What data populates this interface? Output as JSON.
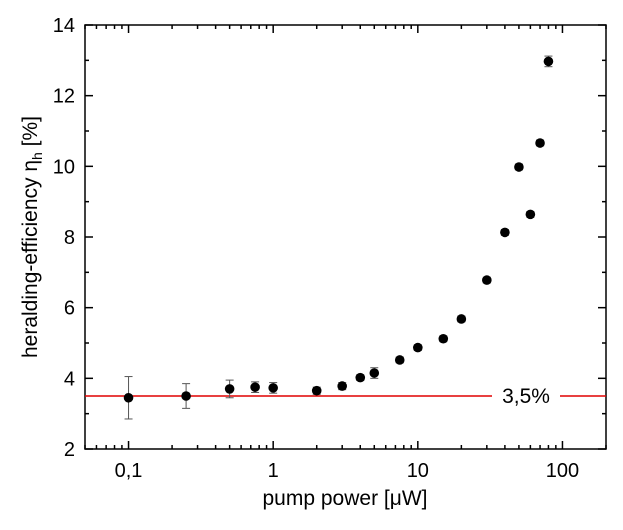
{
  "chart_data": {
    "type": "scatter",
    "x_scale": "log",
    "xlabel": "pump power [μW]",
    "ylabel_main": "heralding-efficiency η",
    "ylabel_subscript": "h",
    "ylabel_unit": " [%]",
    "xlim": [
      0.05,
      200
    ],
    "ylim": [
      2,
      14
    ],
    "x_ticks": [
      {
        "value": 0.1,
        "label": "0,1"
      },
      {
        "value": 1,
        "label": "1"
      },
      {
        "value": 10,
        "label": "10"
      },
      {
        "value": 100,
        "label": "100"
      }
    ],
    "y_ticks": [
      {
        "value": 2,
        "label": "2"
      },
      {
        "value": 4,
        "label": "4"
      },
      {
        "value": 6,
        "label": "6"
      },
      {
        "value": 8,
        "label": "8"
      },
      {
        "value": 10,
        "label": "10"
      },
      {
        "value": 12,
        "label": "12"
      },
      {
        "value": 14,
        "label": "14"
      }
    ],
    "series": [
      {
        "name": "heralding efficiency",
        "color": "#000000",
        "points": [
          {
            "x": 0.1,
            "y": 3.45,
            "err": 0.6
          },
          {
            "x": 0.25,
            "y": 3.5,
            "err": 0.35
          },
          {
            "x": 0.5,
            "y": 3.7,
            "err": 0.25
          },
          {
            "x": 0.75,
            "y": 3.75,
            "err": 0.15
          },
          {
            "x": 1,
            "y": 3.73,
            "err": 0.15
          },
          {
            "x": 2,
            "y": 3.65,
            "err": 0.1
          },
          {
            "x": 3,
            "y": 3.78,
            "err": 0.1
          },
          {
            "x": 4,
            "y": 4.02,
            "err": 0.08
          },
          {
            "x": 5,
            "y": 4.15,
            "err": 0.15
          },
          {
            "x": 7.5,
            "y": 4.52,
            "err": 0.08
          },
          {
            "x": 10,
            "y": 4.87,
            "err": 0.08
          },
          {
            "x": 15,
            "y": 5.12,
            "err": 0.08
          },
          {
            "x": 20,
            "y": 5.68,
            "err": 0.08
          },
          {
            "x": 30,
            "y": 6.78,
            "err": 0.08
          },
          {
            "x": 40,
            "y": 8.13,
            "err": 0.08
          },
          {
            "x": 50,
            "y": 9.98,
            "err": 0.08
          },
          {
            "x": 60,
            "y": 8.64,
            "err": 0.08
          },
          {
            "x": 70,
            "y": 10.66,
            "err": 0.08
          },
          {
            "x": 80,
            "y": 12.97,
            "err": 0.15
          }
        ]
      }
    ],
    "reference_line": {
      "y": 3.5,
      "label": "3,5%",
      "color": "#e00000"
    }
  }
}
